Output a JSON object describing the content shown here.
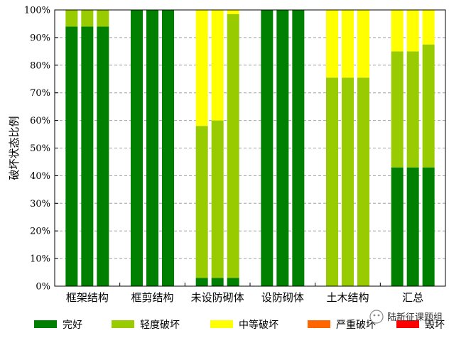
{
  "chart_data": {
    "type": "bar",
    "stacked": true,
    "bars_per_category": 3,
    "categories": [
      "框架结构",
      "框剪结构",
      "未设防砌体",
      "设防砌体",
      "土木结构",
      "汇总"
    ],
    "ylabel": "破坏状态比例",
    "ylim": [
      0,
      100
    ],
    "yticks": [
      "0%",
      "10%",
      "20%",
      "30%",
      "40%",
      "50%",
      "60%",
      "70%",
      "80%",
      "90%",
      "100%"
    ],
    "grid": true,
    "legend_position": "bottom",
    "series": [
      {
        "name": "完好",
        "color": "#008000",
        "values": [
          [
            94,
            94,
            94
          ],
          [
            100,
            100,
            100
          ],
          [
            3,
            3,
            3
          ],
          [
            100,
            100,
            100
          ],
          [
            0,
            0,
            0
          ],
          [
            43,
            43,
            43
          ]
        ]
      },
      {
        "name": "轻度破坏",
        "color": "#99cc00",
        "values": [
          [
            6,
            6,
            6
          ],
          [
            0,
            0,
            0
          ],
          [
            55,
            57,
            95.5
          ],
          [
            0,
            0,
            0
          ],
          [
            75.5,
            75.5,
            75.5
          ],
          [
            42,
            42,
            44.5
          ]
        ]
      },
      {
        "name": "中等破坏",
        "color": "#ffff00",
        "values": [
          [
            0,
            0,
            0
          ],
          [
            0,
            0,
            0
          ],
          [
            42,
            40,
            1.5
          ],
          [
            0,
            0,
            0
          ],
          [
            24.5,
            24.5,
            24.5
          ],
          [
            15,
            15,
            12.5
          ]
        ]
      },
      {
        "name": "严重破坏",
        "color": "#ff6600",
        "values": [
          [
            0,
            0,
            0
          ],
          [
            0,
            0,
            0
          ],
          [
            0,
            0,
            0
          ],
          [
            0,
            0,
            0
          ],
          [
            0,
            0,
            0
          ],
          [
            0,
            0,
            0
          ]
        ]
      },
      {
        "name": "毁坏",
        "color": "#ff0000",
        "values": [
          [
            0,
            0,
            0
          ],
          [
            0,
            0,
            0
          ],
          [
            0,
            0,
            0
          ],
          [
            0,
            0,
            0
          ],
          [
            0,
            0,
            0
          ],
          [
            0,
            0,
            0
          ]
        ]
      }
    ]
  },
  "watermark": {
    "text": "陆新征课题组",
    "icon": "wechat-icon"
  }
}
